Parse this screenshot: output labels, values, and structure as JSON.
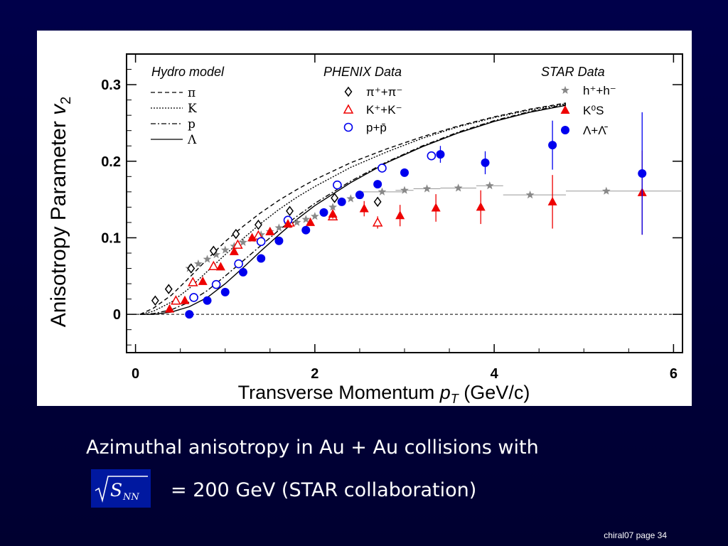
{
  "caption": {
    "line1": "Azimuthal anisotropy in Au + Au collisions with",
    "formula_root": "S",
    "formula_sub": "NN",
    "line2": "= 200 GeV  (STAR collaboration)"
  },
  "footer": "chiral07  page 34",
  "colors": {
    "background": "#00003a",
    "formula_box": "#0018a0",
    "phenix_pi": "#000000",
    "kaon": "#ee0000",
    "proton": "#0000ee",
    "hadron": "#888888"
  },
  "chart_data": {
    "type": "scatter",
    "xlabel": "Transverse Momentum",
    "xlabel_symbol": "p",
    "xlabel_sub": "T",
    "xlabel_unit": "(GeV/c)",
    "ylabel": "Anisotropy Parameter",
    "ylabel_symbol": "v",
    "ylabel_sub": "2",
    "xlim": [
      -0.1,
      6.1
    ],
    "ylim": [
      -0.05,
      0.34
    ],
    "xticks": [
      "0",
      "2",
      "4",
      "6"
    ],
    "xtick_values": [
      0,
      2,
      4,
      6
    ],
    "yticks": [
      "0",
      "0.1",
      "0.2",
      "0.3"
    ],
    "ytick_values": [
      0,
      0.1,
      0.2,
      0.3
    ],
    "legend": {
      "hydro_title": "Hydro model",
      "phenix_title": "PHENIX Data",
      "star_title": "STAR Data",
      "hydro": [
        "π",
        "K",
        "p",
        "Λ"
      ],
      "phenix": [
        "π⁺+π⁻",
        "K⁺+K⁻",
        "p+p̄"
      ],
      "star": [
        "h⁺+h⁻",
        "K⁰S",
        "Λ+Λ̄"
      ]
    },
    "hydro_curves": [
      {
        "name": "π",
        "dash": "6,4",
        "x": [
          0.05,
          0.2,
          0.4,
          0.6,
          0.8,
          1.0,
          1.2,
          1.4,
          1.6,
          1.8,
          2.0,
          2.4,
          2.8,
          3.2,
          3.6,
          4.0,
          4.4,
          4.8
        ],
        "y": [
          0.0,
          0.008,
          0.025,
          0.048,
          0.072,
          0.095,
          0.115,
          0.133,
          0.149,
          0.163,
          0.176,
          0.198,
          0.216,
          0.232,
          0.246,
          0.258,
          0.268,
          0.276
        ]
      },
      {
        "name": "K",
        "dash": "2,2",
        "x": [
          0.05,
          0.2,
          0.4,
          0.6,
          0.8,
          1.0,
          1.2,
          1.4,
          1.6,
          1.8,
          2.0,
          2.4,
          2.8,
          3.2,
          3.6,
          4.0,
          4.4,
          4.8
        ],
        "y": [
          0.0,
          0.004,
          0.016,
          0.034,
          0.056,
          0.078,
          0.099,
          0.119,
          0.137,
          0.153,
          0.167,
          0.192,
          0.212,
          0.23,
          0.245,
          0.257,
          0.267,
          0.275
        ]
      },
      {
        "name": "p",
        "dash": "7,3,2,3",
        "x": [
          0.05,
          0.2,
          0.4,
          0.6,
          0.8,
          1.0,
          1.2,
          1.4,
          1.6,
          1.8,
          2.0,
          2.4,
          2.8,
          3.2,
          3.6,
          4.0,
          4.4,
          4.8
        ],
        "y": [
          0.0,
          0.001,
          0.006,
          0.016,
          0.031,
          0.05,
          0.07,
          0.09,
          0.11,
          0.128,
          0.145,
          0.174,
          0.199,
          0.22,
          0.238,
          0.253,
          0.265,
          0.274
        ]
      },
      {
        "name": "Λ",
        "dash": "",
        "x": [
          0.05,
          0.2,
          0.4,
          0.6,
          0.8,
          1.0,
          1.2,
          1.4,
          1.6,
          1.8,
          2.0,
          2.4,
          2.8,
          3.2,
          3.6,
          4.0,
          4.4,
          4.8
        ],
        "y": [
          0.0,
          0.0,
          0.003,
          0.01,
          0.022,
          0.04,
          0.061,
          0.083,
          0.104,
          0.124,
          0.142,
          0.172,
          0.198,
          0.219,
          0.237,
          0.252,
          0.264,
          0.273
        ]
      }
    ],
    "series": [
      {
        "name": "PHENIX π⁺+π⁻",
        "marker": "open-diamond",
        "color": "#000000",
        "x": [
          0.22,
          0.37,
          0.62,
          0.87,
          1.12,
          1.37,
          1.72,
          2.22,
          2.7
        ],
        "y": [
          0.018,
          0.033,
          0.06,
          0.083,
          0.105,
          0.117,
          0.135,
          0.152,
          0.147
        ],
        "err": [
          0,
          0,
          0,
          0,
          0,
          0,
          0,
          0,
          0.006
        ]
      },
      {
        "name": "PHENIX K⁺+K⁻",
        "marker": "open-triangle",
        "color": "#ee0000",
        "x": [
          0.45,
          0.64,
          0.87,
          1.14,
          1.37,
          1.72,
          2.2,
          2.7
        ],
        "y": [
          0.018,
          0.042,
          0.063,
          0.091,
          0.103,
          0.12,
          0.128,
          0.12
        ],
        "err": [
          0,
          0,
          0,
          0,
          0,
          0,
          0,
          0.008
        ]
      },
      {
        "name": "PHENIX p+p̄",
        "marker": "open-circle",
        "color": "#0000ee",
        "x": [
          0.65,
          0.9,
          1.15,
          1.4,
          1.7,
          2.25,
          2.75,
          3.3
        ],
        "y": [
          0.022,
          0.039,
          0.066,
          0.095,
          0.123,
          0.169,
          0.191,
          0.207
        ],
        "err": [
          0,
          0,
          0,
          0,
          0,
          0,
          0,
          0
        ]
      },
      {
        "name": "STAR h⁺+h⁻",
        "marker": "star",
        "color": "#888888",
        "x": [
          0.6,
          0.7,
          0.8,
          0.9,
          1.0,
          1.1,
          1.2,
          1.3,
          1.4,
          1.5,
          1.6,
          1.7,
          1.8,
          1.9,
          2.0,
          2.1,
          2.2,
          2.3,
          2.4,
          2.5,
          2.75,
          3.0,
          3.25,
          3.6,
          3.95,
          4.4,
          5.25
        ],
        "y": [
          0.06,
          0.066,
          0.072,
          0.078,
          0.084,
          0.089,
          0.094,
          0.099,
          0.104,
          0.108,
          0.113,
          0.117,
          0.12,
          0.124,
          0.128,
          0.133,
          0.14,
          0.147,
          0.151,
          0.155,
          0.16,
          0.162,
          0.164,
          0.165,
          0.168,
          0.156,
          0.161
        ],
        "err": [
          0,
          0,
          0,
          0,
          0,
          0,
          0,
          0,
          0,
          0,
          0,
          0,
          0,
          0,
          0,
          0,
          0,
          0,
          0,
          0,
          0,
          0,
          0,
          0,
          0,
          0,
          0
        ]
      },
      {
        "name": "STAR K⁰S",
        "marker": "filled-triangle",
        "color": "#ee0000",
        "x": [
          0.38,
          0.55,
          0.75,
          0.95,
          1.1,
          1.3,
          1.5,
          1.7,
          1.95,
          2.2,
          2.55,
          2.95,
          3.35,
          3.85,
          4.65,
          5.65
        ],
        "y": [
          0.007,
          0.018,
          0.043,
          0.062,
          0.082,
          0.1,
          0.108,
          0.118,
          0.12,
          0.131,
          0.138,
          0.129,
          0.139,
          0.14,
          0.147,
          0.159
        ],
        "err": [
          0,
          0,
          0,
          0,
          0,
          0,
          0,
          0,
          0.004,
          0.006,
          0.01,
          0.014,
          0.018,
          0.022,
          0.035,
          0.055
        ]
      },
      {
        "name": "STAR Λ+Λ̄",
        "marker": "filled-circle",
        "color": "#0000ee",
        "x": [
          0.6,
          0.8,
          1.0,
          1.2,
          1.4,
          1.6,
          1.9,
          2.1,
          2.3,
          2.5,
          2.7,
          3.0,
          3.4,
          3.9,
          4.65,
          5.65
        ],
        "y": [
          0.0,
          0.018,
          0.029,
          0.055,
          0.073,
          0.096,
          0.11,
          0.133,
          0.147,
          0.156,
          0.17,
          0.185,
          0.209,
          0.198,
          0.221,
          0.184
        ],
        "err": [
          0,
          0,
          0,
          0,
          0,
          0,
          0,
          0,
          0,
          0,
          0,
          0,
          0.011,
          0.015,
          0.032,
          0.08
        ]
      }
    ]
  }
}
